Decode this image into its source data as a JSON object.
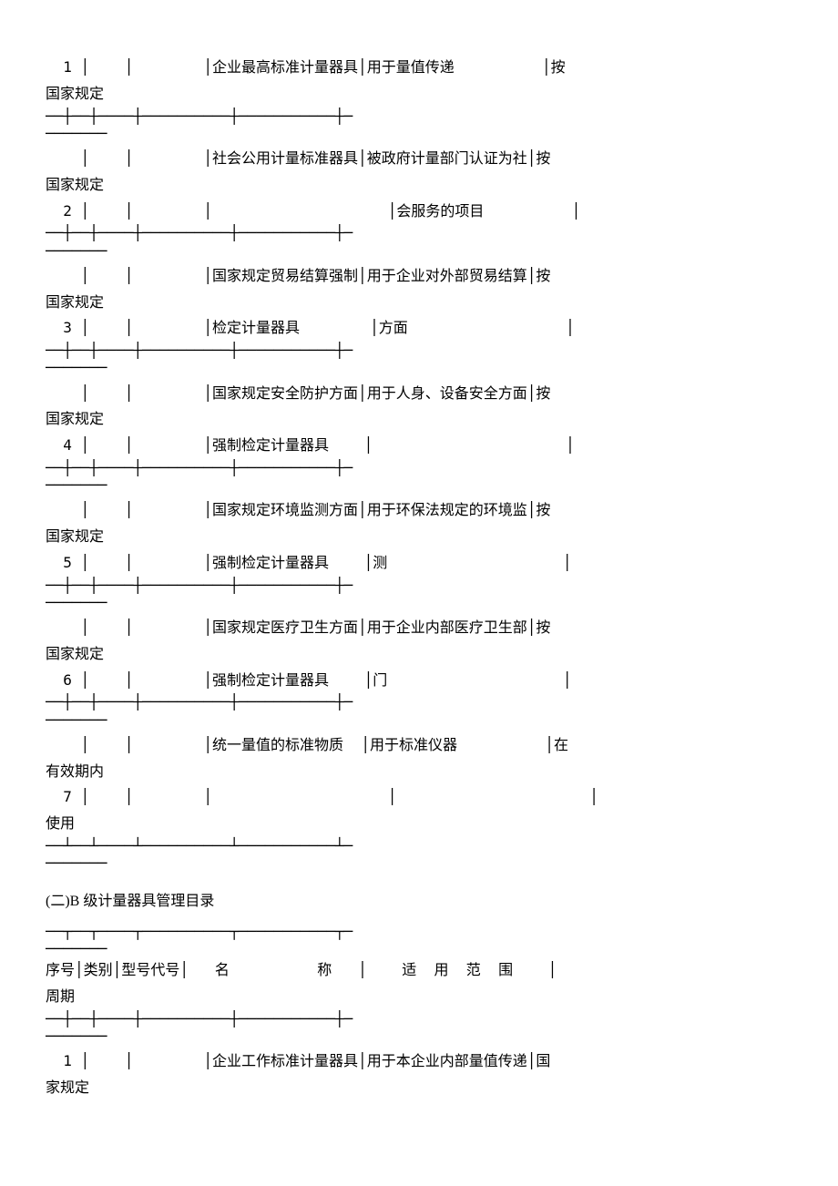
{
  "tableA": {
    "rows": [
      {
        "num": "1",
        "name_l1": "企业最高标准计量器具",
        "scope_l1": "用于量值传递",
        "cycle_l1": "按",
        "cycle_wrap": "国家规定",
        "name_l2": "",
        "scope_l2": ""
      },
      {
        "num": "2",
        "name_l1": "社会公用计量标准器具",
        "scope_l1": "被政府计量部门认证为社",
        "cycle_l1": "按",
        "cycle_wrap": "国家规定",
        "name_l2": "",
        "scope_l2": "会服务的项目"
      },
      {
        "num": "3",
        "name_l1": "国家规定贸易结算强制",
        "scope_l1": "用于企业对外部贸易结算",
        "cycle_l1": "按",
        "cycle_wrap": "国家规定",
        "name_l2": "检定计量器具",
        "scope_l2": "方面"
      },
      {
        "num": "4",
        "name_l1": "国家规定安全防护方面",
        "scope_l1": "用于人身、设备安全方面",
        "cycle_l1": "按",
        "cycle_wrap": "国家规定",
        "name_l2": "强制检定计量器具",
        "scope_l2": ""
      },
      {
        "num": "5",
        "name_l1": "国家规定环境监测方面",
        "scope_l1": "用于环保法规定的环境监",
        "cycle_l1": "按",
        "cycle_wrap": "国家规定",
        "name_l2": "强制检定计量器具",
        "scope_l2": "测"
      },
      {
        "num": "6",
        "name_l1": "国家规定医疗卫生方面",
        "scope_l1": "用于企业内部医疗卫生部",
        "cycle_l1": "按",
        "cycle_wrap": "国家规定",
        "name_l2": "强制检定计量器具",
        "scope_l2": "门"
      },
      {
        "num": "7",
        "name_l1": "统一量值的标准物质",
        "scope_l1": "用于标准仪器",
        "cycle_l1": "在",
        "cycle_wrap": "有效期内",
        "name_l2": "",
        "scope_l2": "",
        "extra_wrap": "使用"
      }
    ]
  },
  "sectionB": {
    "title": "(二)B 级计量器具管理目录",
    "header": {
      "col1": "序号",
      "col2": "类别",
      "col3": "型号代号",
      "col4": "名          称",
      "col5": "适  用  范  围",
      "col6_wrap": "周期"
    },
    "rows": [
      {
        "num": "1",
        "name_l1": "企业工作标准计量器具",
        "scope_l1": "用于本企业内部量值传递",
        "cycle_l1": "国",
        "cycle_wrap": "家规定"
      }
    ]
  },
  "layout": {
    "sep_top": "──┼──┼────┼──────────┼───────────┼─",
    "sep_under": "───────",
    "col_widths": {
      "num": 4,
      "cat": 4,
      "model": 8,
      "name": 20,
      "scope": 22,
      "cycle": 2
    },
    "colors": {
      "text": "#000000",
      "background": "#ffffff"
    },
    "font_size": 16
  }
}
